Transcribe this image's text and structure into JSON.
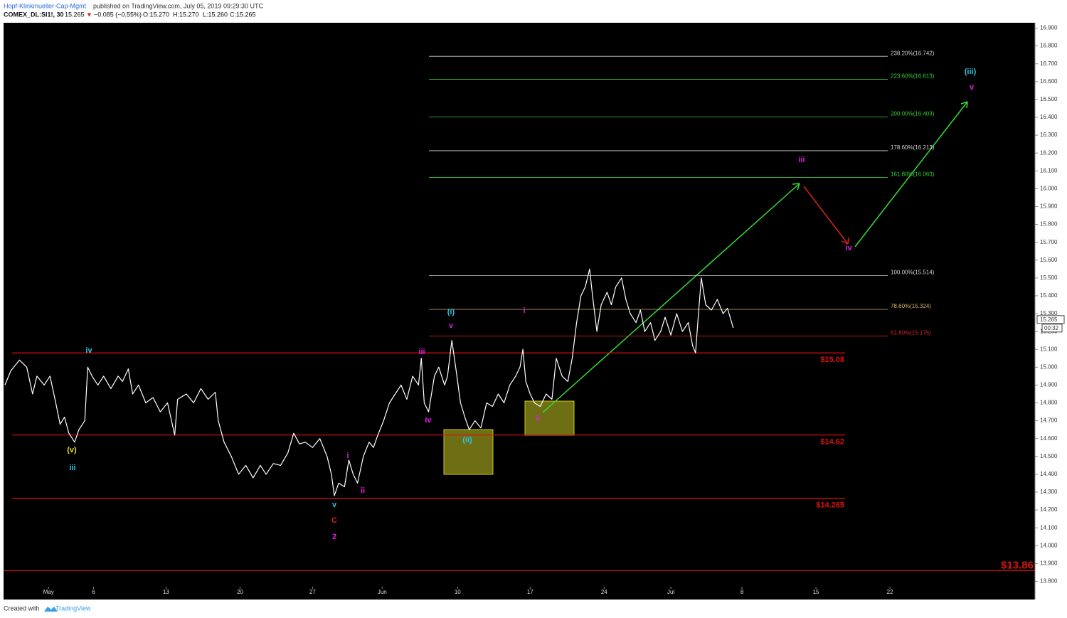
{
  "header": {
    "author": "Hopf-Klinkmueller-Cap-Mgmt",
    "published": "published on TradingView.com, July 05, 2019 09:29:30 UTC",
    "symbol": "COMEX_DL:SI1!, 30",
    "last": "15.265",
    "arrow": "▼",
    "change": "−0.085 (−0.55%)",
    "open": "O:15.270",
    "high": "H:15.270",
    "low": "L:15.260",
    "close": "C:15.265"
  },
  "footer": {
    "created": "Created with",
    "brand": "TradingView"
  },
  "chart_data": {
    "type": "line",
    "color": "#ffffff",
    "xlim": [
      -3.1,
      68.0
    ],
    "ylim": [
      13.77,
      16.93
    ],
    "xticks": [
      {
        "value": 0,
        "label": "May"
      },
      {
        "value": 3.1,
        "label": "6"
      },
      {
        "value": 8.1,
        "label": "13"
      },
      {
        "value": 13.2,
        "label": "20"
      },
      {
        "value": 18.2,
        "label": "27"
      },
      {
        "value": 23.0,
        "label": "Jun"
      },
      {
        "value": 28.2,
        "label": "10"
      },
      {
        "value": 33.2,
        "label": "17"
      },
      {
        "value": 38.3,
        "label": "24"
      },
      {
        "value": 42.9,
        "label": "Jul"
      },
      {
        "value": 47.8,
        "label": "8"
      },
      {
        "value": 52.9,
        "label": "15"
      },
      {
        "value": 58.0,
        "label": "22"
      }
    ],
    "yticks": [
      {
        "value": 13.8,
        "label": "13.800"
      },
      {
        "value": 13.9,
        "label": "13.900"
      },
      {
        "value": 14.0,
        "label": "14.000"
      },
      {
        "value": 14.1,
        "label": "14.100"
      },
      {
        "value": 14.2,
        "label": "14.200"
      },
      {
        "value": 14.3,
        "label": "14.300"
      },
      {
        "value": 14.4,
        "label": "14.400"
      },
      {
        "value": 14.5,
        "label": "14.500"
      },
      {
        "value": 14.6,
        "label": "14.600"
      },
      {
        "value": 14.7,
        "label": "14.700"
      },
      {
        "value": 14.8,
        "label": "14.800"
      },
      {
        "value": 14.9,
        "label": "14.900"
      },
      {
        "value": 15.0,
        "label": "15.000"
      },
      {
        "value": 15.1,
        "label": "15.100"
      },
      {
        "value": 15.2,
        "label": "15.200"
      },
      {
        "value": 15.3,
        "label": "15.300"
      },
      {
        "value": 15.4,
        "label": "15.400"
      },
      {
        "value": 15.5,
        "label": "15.500"
      },
      {
        "value": 15.6,
        "label": "15.600"
      },
      {
        "value": 15.7,
        "label": "15.700"
      },
      {
        "value": 15.8,
        "label": "15.800"
      },
      {
        "value": 15.9,
        "label": "15.900"
      },
      {
        "value": 16.0,
        "label": "16.000"
      },
      {
        "value": 16.1,
        "label": "16.100"
      },
      {
        "value": 16.2,
        "label": "16.200"
      },
      {
        "value": 16.3,
        "label": "16.300"
      },
      {
        "value": 16.4,
        "label": "16.400"
      },
      {
        "value": 16.5,
        "label": "16.500"
      },
      {
        "value": 16.6,
        "label": "16.600"
      },
      {
        "value": 16.7,
        "label": "16.700"
      },
      {
        "value": 16.8,
        "label": "16.800"
      },
      {
        "value": 16.9,
        "label": "16.900"
      }
    ],
    "x": [
      -3.0,
      -2.6,
      -2.0,
      -1.5,
      -1.1,
      -0.8,
      -0.3,
      0.1,
      0.5,
      0.8,
      1.1,
      1.4,
      1.8,
      2.1,
      2.5,
      2.7,
      3.0,
      3.4,
      3.8,
      4.3,
      4.8,
      5.1,
      5.5,
      5.8,
      6.2,
      6.7,
      7.2,
      7.7,
      8.2,
      8.7,
      8.9,
      9.5,
      10.0,
      10.5,
      11.0,
      11.5,
      11.7,
      12.1,
      12.6,
      13.1,
      13.6,
      14.1,
      14.6,
      15.0,
      15.5,
      16.0,
      16.5,
      16.9,
      17.3,
      17.7,
      18.2,
      18.7,
      19.2,
      19.5,
      19.7,
      20.0,
      20.4,
      20.7,
      21.0,
      21.3,
      21.7,
      22.1,
      22.4,
      22.7,
      23.1,
      23.5,
      23.9,
      24.3,
      24.7,
      25.1,
      25.5,
      25.7,
      25.9,
      26.2,
      26.6,
      26.9,
      27.3,
      27.5,
      27.8,
      28.1,
      28.4,
      28.7,
      29.0,
      29.4,
      29.8,
      30.2,
      30.6,
      31.0,
      31.4,
      31.8,
      32.2,
      32.5,
      32.7,
      32.9,
      33.2,
      33.5,
      33.9,
      34.3,
      34.7,
      35.0,
      35.4,
      35.8,
      36.1,
      36.4,
      36.7,
      37.0,
      37.3,
      37.5,
      37.8,
      38.1,
      38.5,
      38.8,
      39.1,
      39.5,
      39.8,
      40.1,
      40.5,
      40.8,
      41.1,
      41.5,
      41.8,
      42.2,
      42.5,
      42.9,
      43.3,
      43.7,
      44.1,
      44.4,
      44.6,
      44.8,
      45.0,
      45.3,
      45.7,
      46.1,
      46.5,
      46.8,
      47.2
    ],
    "values": [
      14.9,
      14.98,
      15.04,
      15.0,
      14.85,
      14.95,
      14.9,
      14.95,
      14.8,
      14.68,
      14.72,
      14.63,
      14.58,
      14.65,
      14.7,
      15.0,
      14.95,
      14.9,
      14.95,
      14.88,
      14.95,
      14.92,
      14.99,
      14.85,
      14.9,
      14.8,
      14.83,
      14.75,
      14.8,
      14.62,
      14.82,
      14.85,
      14.8,
      14.88,
      14.82,
      14.86,
      14.7,
      14.58,
      14.5,
      14.4,
      14.45,
      14.38,
      14.45,
      14.4,
      14.46,
      14.45,
      14.52,
      14.63,
      14.57,
      14.58,
      14.55,
      14.6,
      14.5,
      14.4,
      14.28,
      14.35,
      14.33,
      14.48,
      14.4,
      14.35,
      14.5,
      14.58,
      14.55,
      14.62,
      14.7,
      14.8,
      14.85,
      14.9,
      14.82,
      14.95,
      14.9,
      15.05,
      14.8,
      14.75,
      14.95,
      15.0,
      14.9,
      14.95,
      15.15,
      14.98,
      14.8,
      14.72,
      14.65,
      14.7,
      14.66,
      14.8,
      14.78,
      14.85,
      14.8,
      14.9,
      14.95,
      15.0,
      15.1,
      14.92,
      14.85,
      14.8,
      14.78,
      14.85,
      14.82,
      15.05,
      14.95,
      14.92,
      15.05,
      15.25,
      15.4,
      15.45,
      15.55,
      15.4,
      15.2,
      15.35,
      15.42,
      15.35,
      15.45,
      15.5,
      15.38,
      15.3,
      15.25,
      15.32,
      15.2,
      15.25,
      15.15,
      15.2,
      15.28,
      15.18,
      15.3,
      15.2,
      15.25,
      15.12,
      15.08,
      15.3,
      15.5,
      15.35,
      15.32,
      15.38,
      15.3,
      15.33,
      15.22
    ],
    "levels": [
      {
        "value": 15.08,
        "label": "$15.08"
      },
      {
        "value": 14.62,
        "label": "$14.62"
      },
      {
        "value": 14.265,
        "label": "$14.265"
      },
      {
        "value": 13.86,
        "label": "$13.86"
      }
    ],
    "level_color": "#e01010",
    "fib_levels": [
      {
        "value": 16.742,
        "label": "238.20%(16.742)",
        "color": "#d0d0d0"
      },
      {
        "value": 16.613,
        "label": "223.60%(16.613)",
        "color": "#33cc33"
      },
      {
        "value": 16.403,
        "label": "200.00%(16.403)",
        "color": "#33cc33"
      },
      {
        "value": 16.213,
        "label": "178.60%(16.213)",
        "color": "#d0d0d0"
      },
      {
        "value": 16.063,
        "label": "161.80%(16.063)",
        "color": "#33cc33"
      },
      {
        "value": 15.514,
        "label": "100.00%(15.514)",
        "color": "#d0d0d0"
      },
      {
        "value": 15.324,
        "label": "78.60%(15.324)",
        "color": "#d8b46a"
      },
      {
        "value": 15.175,
        "label": "61.80%(15.175)",
        "color": "#d02020"
      }
    ],
    "price_tag": {
      "value": 15.265,
      "label": "15.265"
    },
    "countdown": "00:32",
    "annotations": [
      {
        "text": "iv",
        "color": "#2ec4e0"
      },
      {
        "text": "(v)",
        "color": "#e8e030"
      },
      {
        "text": "iii",
        "color": "#2ec4e0"
      },
      {
        "text": "v",
        "color": "#2ec4e0"
      },
      {
        "text": "C",
        "color": "#e02020"
      },
      {
        "text": "2",
        "color": "#e020e0"
      },
      {
        "text": "i",
        "color": "#e020e0"
      },
      {
        "text": "ii",
        "color": "#e020e0"
      },
      {
        "text": "iii",
        "color": "#e020e0"
      },
      {
        "text": "iv",
        "color": "#e020e0"
      },
      {
        "text": "(i)",
        "color": "#2ec4e0"
      },
      {
        "text": "v",
        "color": "#e020e0"
      },
      {
        "text": "(ii)",
        "color": "#2ec4e0"
      },
      {
        "text": "i",
        "color": "#e020e0"
      },
      {
        "text": "ii",
        "color": "#e020e0"
      },
      {
        "text": "iii",
        "color": "#e020e0"
      },
      {
        "text": "iv",
        "color": "#e020e0"
      },
      {
        "text": "(iii)",
        "color": "#2ec4e0"
      },
      {
        "text": "v",
        "color": "#e020e0"
      }
    ]
  }
}
